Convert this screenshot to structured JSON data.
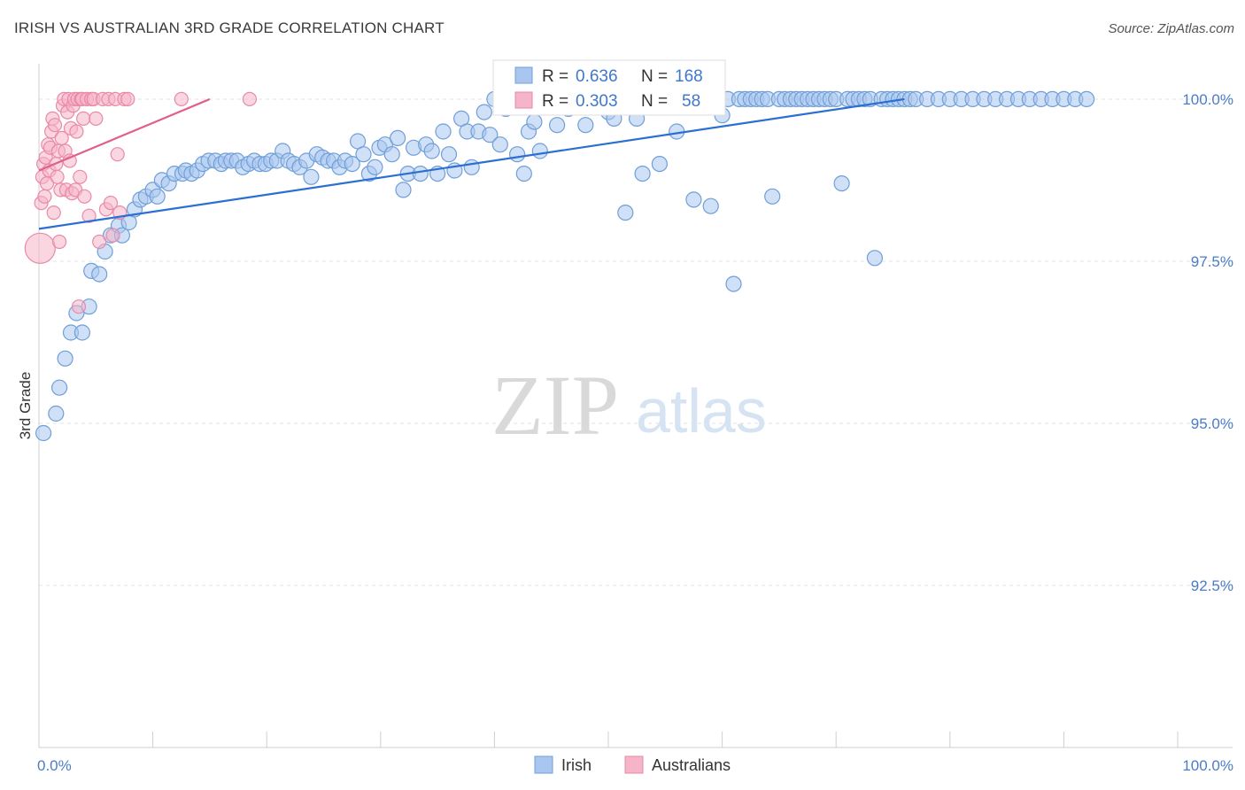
{
  "header": {
    "title": "IRISH VS AUSTRALIAN 3RD GRADE CORRELATION CHART",
    "source": "Source: ZipAtlas.com"
  },
  "watermark": {
    "zip": "ZIP",
    "atlas": "atlas"
  },
  "colors": {
    "irish_fill": "#a9c7ee",
    "irish_stroke": "#6f9fd8",
    "irish_line": "#2a6fd1",
    "aus_fill": "#f5b4c8",
    "aus_stroke": "#e88aa8",
    "aus_line": "#e0608a",
    "grid": "#e3e3e3",
    "tick_label": "#4a7cc8"
  },
  "legend": {
    "irish": {
      "r_label": "R = ",
      "r_value": "0.636",
      "n_label": "N = ",
      "n_value": "168"
    },
    "australians": {
      "r_label": "R = ",
      "r_value": "0.303",
      "n_label": "N = ",
      "n_value": "58"
    }
  },
  "chart_data": {
    "type": "scatter",
    "title": "IRISH VS AUSTRALIAN 3RD GRADE CORRELATION CHART",
    "xlabel": "",
    "ylabel": "3rd Grade",
    "xlim": [
      0,
      100
    ],
    "ylim": [
      90.0,
      100.45
    ],
    "x_tick_labels": [
      "0.0%",
      "100.0%"
    ],
    "y_ticks": [
      92.5,
      95.0,
      97.5,
      100.0
    ],
    "y_tick_labels": [
      "92.5%",
      "95.0%",
      "97.5%",
      "100.0%"
    ],
    "legend_position": "bottom-center",
    "series": [
      {
        "name": "Irish",
        "R": 0.636,
        "N": 168,
        "trend": {
          "x0": 0,
          "y0": 98.0,
          "x1": 76,
          "y1": 100.0
        },
        "points": [
          [
            0.4,
            94.85
          ],
          [
            1.5,
            95.15
          ],
          [
            1.8,
            95.55
          ],
          [
            2.3,
            96.0
          ],
          [
            2.8,
            96.4
          ],
          [
            3.3,
            96.7
          ],
          [
            3.8,
            96.4
          ],
          [
            4.4,
            96.8
          ],
          [
            4.6,
            97.35
          ],
          [
            5.3,
            97.3
          ],
          [
            5.8,
            97.65
          ],
          [
            6.3,
            97.9
          ],
          [
            7.0,
            98.05
          ],
          [
            7.3,
            97.9
          ],
          [
            7.9,
            98.1
          ],
          [
            8.4,
            98.3
          ],
          [
            8.9,
            98.45
          ],
          [
            9.4,
            98.5
          ],
          [
            10.0,
            98.6
          ],
          [
            10.4,
            98.5
          ],
          [
            10.8,
            98.75
          ],
          [
            11.4,
            98.7
          ],
          [
            11.9,
            98.85
          ],
          [
            12.6,
            98.85
          ],
          [
            12.9,
            98.9
          ],
          [
            13.4,
            98.85
          ],
          [
            13.9,
            98.9
          ],
          [
            14.4,
            99.0
          ],
          [
            14.9,
            99.05
          ],
          [
            15.5,
            99.05
          ],
          [
            16.0,
            99.0
          ],
          [
            16.4,
            99.05
          ],
          [
            16.9,
            99.05
          ],
          [
            17.4,
            99.05
          ],
          [
            17.9,
            98.95
          ],
          [
            18.4,
            99.0
          ],
          [
            18.9,
            99.05
          ],
          [
            19.4,
            99.0
          ],
          [
            19.9,
            99.0
          ],
          [
            20.4,
            99.05
          ],
          [
            20.9,
            99.05
          ],
          [
            21.4,
            99.2
          ],
          [
            21.9,
            99.05
          ],
          [
            22.4,
            99.0
          ],
          [
            22.9,
            98.95
          ],
          [
            23.5,
            99.05
          ],
          [
            23.9,
            98.8
          ],
          [
            24.4,
            99.15
          ],
          [
            24.9,
            99.1
          ],
          [
            25.4,
            99.05
          ],
          [
            25.9,
            99.05
          ],
          [
            26.4,
            98.95
          ],
          [
            26.9,
            99.05
          ],
          [
            27.5,
            99.0
          ],
          [
            28.0,
            99.35
          ],
          [
            28.5,
            99.15
          ],
          [
            29.0,
            98.85
          ],
          [
            29.5,
            98.95
          ],
          [
            29.9,
            99.25
          ],
          [
            30.4,
            99.3
          ],
          [
            31.0,
            99.15
          ],
          [
            31.5,
            99.4
          ],
          [
            32.0,
            98.6
          ],
          [
            32.4,
            98.85
          ],
          [
            32.9,
            99.25
          ],
          [
            33.5,
            98.85
          ],
          [
            34.0,
            99.3
          ],
          [
            34.5,
            99.2
          ],
          [
            35.0,
            98.85
          ],
          [
            35.5,
            99.5
          ],
          [
            36.0,
            99.15
          ],
          [
            36.5,
            98.9
          ],
          [
            37.1,
            99.7
          ],
          [
            37.6,
            99.5
          ],
          [
            38.0,
            98.95
          ],
          [
            38.6,
            99.5
          ],
          [
            39.1,
            99.8
          ],
          [
            39.6,
            99.45
          ],
          [
            40.0,
            100.0
          ],
          [
            40.5,
            99.3
          ],
          [
            41.0,
            99.85
          ],
          [
            41.5,
            100.0
          ],
          [
            42.0,
            99.15
          ],
          [
            42.6,
            98.85
          ],
          [
            43.0,
            99.5
          ],
          [
            43.5,
            99.65
          ],
          [
            44.0,
            99.2
          ],
          [
            44.5,
            99.95
          ],
          [
            45.0,
            100.0
          ],
          [
            45.5,
            99.6
          ],
          [
            46.0,
            100.0
          ],
          [
            46.5,
            99.85
          ],
          [
            47.0,
            100.0
          ],
          [
            47.5,
            100.0
          ],
          [
            48.0,
            99.6
          ],
          [
            48.5,
            100.0
          ],
          [
            49.0,
            100.0
          ],
          [
            49.5,
            99.95
          ],
          [
            50.0,
            99.8
          ],
          [
            50.5,
            99.7
          ],
          [
            51.0,
            100.0
          ],
          [
            51.5,
            98.25
          ],
          [
            52.0,
            99.95
          ],
          [
            52.5,
            99.7
          ],
          [
            53.0,
            98.85
          ],
          [
            53.5,
            100.0
          ],
          [
            54.0,
            100.0
          ],
          [
            54.5,
            99.0
          ],
          [
            55.0,
            100.0
          ],
          [
            55.5,
            100.0
          ],
          [
            56.0,
            99.5
          ],
          [
            56.5,
            100.0
          ],
          [
            57.0,
            100.0
          ],
          [
            57.5,
            98.45
          ],
          [
            58.0,
            100.0
          ],
          [
            58.5,
            100.0
          ],
          [
            59.0,
            98.35
          ],
          [
            59.5,
            99.9
          ],
          [
            60.0,
            99.75
          ],
          [
            60.5,
            100.0
          ],
          [
            61.0,
            97.15
          ],
          [
            61.5,
            100.0
          ],
          [
            62.0,
            100.0
          ],
          [
            62.5,
            100.0
          ],
          [
            63.0,
            100.0
          ],
          [
            63.5,
            100.0
          ],
          [
            64.0,
            100.0
          ],
          [
            64.4,
            98.5
          ],
          [
            65.0,
            100.0
          ],
          [
            65.5,
            100.0
          ],
          [
            66.0,
            100.0
          ],
          [
            66.5,
            100.0
          ],
          [
            67.0,
            100.0
          ],
          [
            67.5,
            100.0
          ],
          [
            68.0,
            100.0
          ],
          [
            68.5,
            100.0
          ],
          [
            69.0,
            100.0
          ],
          [
            69.5,
            100.0
          ],
          [
            70.0,
            100.0
          ],
          [
            70.5,
            98.7
          ],
          [
            71.0,
            100.0
          ],
          [
            71.5,
            100.0
          ],
          [
            72.0,
            100.0
          ],
          [
            72.5,
            100.0
          ],
          [
            73.0,
            100.0
          ],
          [
            73.4,
            97.55
          ],
          [
            74.0,
            100.0
          ],
          [
            74.5,
            100.0
          ],
          [
            75.0,
            100.0
          ],
          [
            75.5,
            100.0
          ],
          [
            76.0,
            100.0
          ],
          [
            76.5,
            100.0
          ],
          [
            77.0,
            100.0
          ],
          [
            78.0,
            100.0
          ],
          [
            79.0,
            100.0
          ],
          [
            80.0,
            100.0
          ],
          [
            81.0,
            100.0
          ],
          [
            82.0,
            100.0
          ],
          [
            83.0,
            100.0
          ],
          [
            84.0,
            100.0
          ],
          [
            85.0,
            100.0
          ],
          [
            86.0,
            100.0
          ],
          [
            87.0,
            100.0
          ],
          [
            88.0,
            100.0
          ],
          [
            89.0,
            100.0
          ],
          [
            90.0,
            100.0
          ],
          [
            91.0,
            100.0
          ],
          [
            92.0,
            100.0
          ]
        ]
      },
      {
        "name": "Australians",
        "R": 0.303,
        "N": 58,
        "trend": {
          "x0": 0,
          "y0": 98.9,
          "x1": 15,
          "y1": 100.0
        },
        "points": [
          [
            0.1,
            97.7
          ],
          [
            0.2,
            98.4
          ],
          [
            0.3,
            98.8
          ],
          [
            0.4,
            99.0
          ],
          [
            0.5,
            98.5
          ],
          [
            0.6,
            99.1
          ],
          [
            0.7,
            98.7
          ],
          [
            0.8,
            99.3
          ],
          [
            0.9,
            98.9
          ],
          [
            1.0,
            99.25
          ],
          [
            1.1,
            99.5
          ],
          [
            1.2,
            99.7
          ],
          [
            1.3,
            98.25
          ],
          [
            1.4,
            99.6
          ],
          [
            1.5,
            99.0
          ],
          [
            1.6,
            98.8
          ],
          [
            1.7,
            99.2
          ],
          [
            1.8,
            97.8
          ],
          [
            1.9,
            98.6
          ],
          [
            2.0,
            99.4
          ],
          [
            2.1,
            99.9
          ],
          [
            2.2,
            100.0
          ],
          [
            2.3,
            99.2
          ],
          [
            2.4,
            98.6
          ],
          [
            2.5,
            99.8
          ],
          [
            2.6,
            100.0
          ],
          [
            2.7,
            99.05
          ],
          [
            2.8,
            99.55
          ],
          [
            2.9,
            98.55
          ],
          [
            3.0,
            99.9
          ],
          [
            3.1,
            100.0
          ],
          [
            3.2,
            98.6
          ],
          [
            3.3,
            99.5
          ],
          [
            3.4,
            100.0
          ],
          [
            3.5,
            96.8
          ],
          [
            3.6,
            98.8
          ],
          [
            3.7,
            100.0
          ],
          [
            3.8,
            100.0
          ],
          [
            3.9,
            99.7
          ],
          [
            4.0,
            98.5
          ],
          [
            4.2,
            100.0
          ],
          [
            4.4,
            98.2
          ],
          [
            4.6,
            100.0
          ],
          [
            4.8,
            100.0
          ],
          [
            5.0,
            99.7
          ],
          [
            5.3,
            97.8
          ],
          [
            5.6,
            100.0
          ],
          [
            5.9,
            98.3
          ],
          [
            6.1,
            100.0
          ],
          [
            6.3,
            98.4
          ],
          [
            6.5,
            97.9
          ],
          [
            6.7,
            100.0
          ],
          [
            6.9,
            99.15
          ],
          [
            7.1,
            98.25
          ],
          [
            7.5,
            100.0
          ],
          [
            7.8,
            100.0
          ],
          [
            12.5,
            100.0
          ],
          [
            18.5,
            100.0
          ]
        ]
      }
    ]
  },
  "bottom_legend": {
    "irish": "Irish",
    "australians": "Australians"
  }
}
